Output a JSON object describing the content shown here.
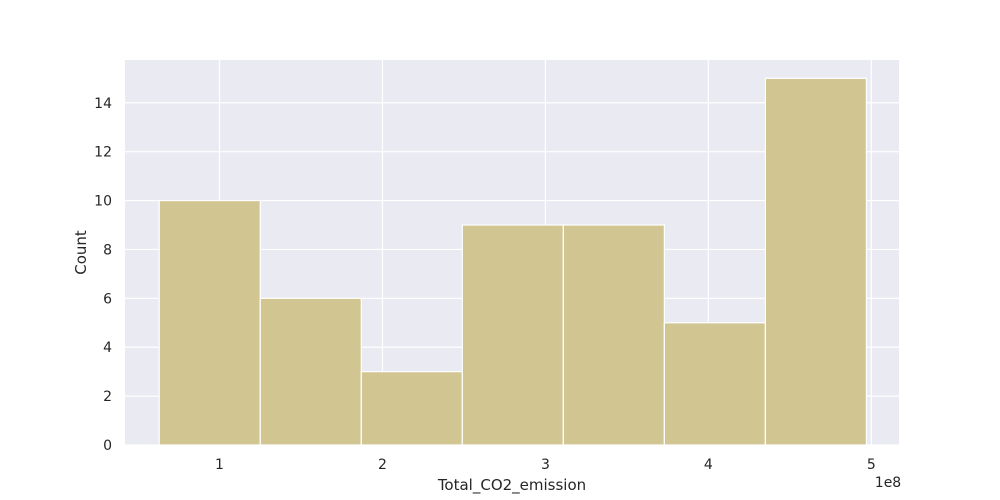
{
  "chart_data": {
    "type": "bar",
    "subtype": "histogram",
    "xlabel": "Total_CO2_emission",
    "ylabel": "Count",
    "x_offset_text": "1e8",
    "x_scale_factor": 100000000,
    "xlim": [
      0.42,
      5.17
    ],
    "ylim": [
      0,
      15.75
    ],
    "x_ticks": [
      1,
      2,
      3,
      4,
      5
    ],
    "y_ticks": [
      0,
      2,
      4,
      6,
      8,
      10,
      12,
      14
    ],
    "bin_edges": [
      0.63,
      1.25,
      1.87,
      2.49,
      3.11,
      3.73,
      4.35,
      4.97
    ],
    "counts": [
      10,
      6,
      3,
      9,
      9,
      5,
      15
    ],
    "grid": true,
    "legend": "none"
  },
  "colors": {
    "plot_background": "#eaeaf2",
    "bar_fill": "#d1c592",
    "bar_edge": "#ffffff",
    "grid": "#ffffff",
    "text": "#262626"
  }
}
